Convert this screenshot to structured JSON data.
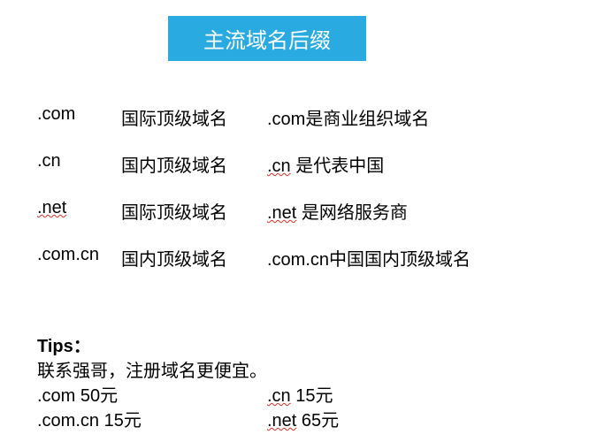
{
  "title": "主流域名后缀",
  "rows": [
    {
      "suffix": ".com",
      "suffix_spellcheck": false,
      "type": "国际顶级域名",
      "desc_prefix": ".com",
      "desc_prefix_spellcheck": false,
      "desc_rest": "是商业组织域名"
    },
    {
      "suffix": ".cn",
      "suffix_spellcheck": false,
      "type": "国内顶级域名",
      "desc_prefix": ".cn",
      "desc_prefix_spellcheck": true,
      "desc_rest": " 是代表中国"
    },
    {
      "suffix": ".net",
      "suffix_spellcheck": true,
      "type": "国际顶级域名",
      "desc_prefix": ".net",
      "desc_prefix_spellcheck": true,
      "desc_rest": " 是网络服务商"
    },
    {
      "suffix": ".com.cn",
      "suffix_spellcheck": false,
      "type": "国内顶级域名",
      "desc_prefix": ".com.cn",
      "desc_prefix_spellcheck": false,
      "desc_rest": "中国国内顶级域名"
    }
  ],
  "tips": {
    "label": "Tips：",
    "line1": "联系强哥，注册域名更便宜。",
    "prices": [
      {
        "left": ".com 50元",
        "right_prefix": ".cn",
        "right_prefix_spellcheck": true,
        "right_rest": "  15元"
      },
      {
        "left": ".com.cn 15元",
        "right_prefix": ".net",
        "right_prefix_spellcheck": true,
        "right_rest": "  65元"
      }
    ]
  },
  "colors": {
    "title_bg": "#29abe2",
    "title_text": "#ffffff",
    "body_text": "#000000",
    "spellcheck": "#d93025"
  }
}
